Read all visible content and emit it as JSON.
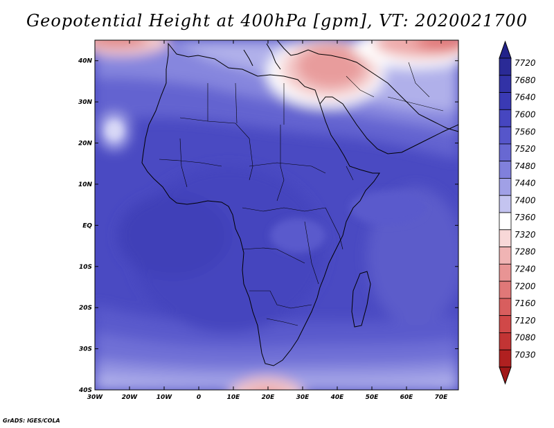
{
  "title": "Geopotential Height at 400hPa [gpm], VT: 2020021700",
  "credit": "GrADS: IGES/COLA",
  "map": {
    "lon_range": [
      -30,
      75
    ],
    "lat_range": [
      -40,
      45
    ],
    "x_ticks": [
      {
        "lon": -30,
        "label": "30W"
      },
      {
        "lon": -20,
        "label": "20W"
      },
      {
        "lon": -10,
        "label": "10W"
      },
      {
        "lon": 0,
        "label": "0"
      },
      {
        "lon": 10,
        "label": "10E"
      },
      {
        "lon": 20,
        "label": "20E"
      },
      {
        "lon": 30,
        "label": "30E"
      },
      {
        "lon": 40,
        "label": "40E"
      },
      {
        "lon": 50,
        "label": "50E"
      },
      {
        "lon": 60,
        "label": "60E"
      },
      {
        "lon": 70,
        "label": "70E"
      }
    ],
    "y_ticks": [
      {
        "lat": 40,
        "label": "40N"
      },
      {
        "lat": 30,
        "label": "30N"
      },
      {
        "lat": 20,
        "label": "20N"
      },
      {
        "lat": 10,
        "label": "10N"
      },
      {
        "lat": 0,
        "label": "EQ"
      },
      {
        "lat": -10,
        "label": "10S"
      },
      {
        "lat": -20,
        "label": "20S"
      },
      {
        "lat": -30,
        "label": "30S"
      },
      {
        "lat": -40,
        "label": "40S"
      }
    ]
  },
  "colorbar": {
    "levels": [
      {
        "label": "7720",
        "color": "#2a2a96"
      },
      {
        "label": "7680",
        "color": "#3232a6"
      },
      {
        "label": "7640",
        "color": "#3a3ab4"
      },
      {
        "label": "7600",
        "color": "#4646c0"
      },
      {
        "label": "7560",
        "color": "#5656ca"
      },
      {
        "label": "7520",
        "color": "#6868d2"
      },
      {
        "label": "7480",
        "color": "#8080dc"
      },
      {
        "label": "7440",
        "color": "#a0a0e6"
      },
      {
        "label": "7400",
        "color": "#c4c4f0"
      },
      {
        "label": "7360",
        "color": "#ffffff"
      },
      {
        "label": "7320",
        "color": "#f8d8d8"
      },
      {
        "label": "7280",
        "color": "#f0b4b4"
      },
      {
        "label": "7240",
        "color": "#e89494"
      },
      {
        "label": "7200",
        "color": "#e07878"
      },
      {
        "label": "7160",
        "color": "#d85e5e"
      },
      {
        "label": "7120",
        "color": "#d04848"
      },
      {
        "label": "7080",
        "color": "#c23434"
      },
      {
        "label": "7030",
        "color": "#b02020"
      }
    ],
    "top_triangle_color": "#22228a",
    "bottom_triangle_color": "#a01818"
  }
}
